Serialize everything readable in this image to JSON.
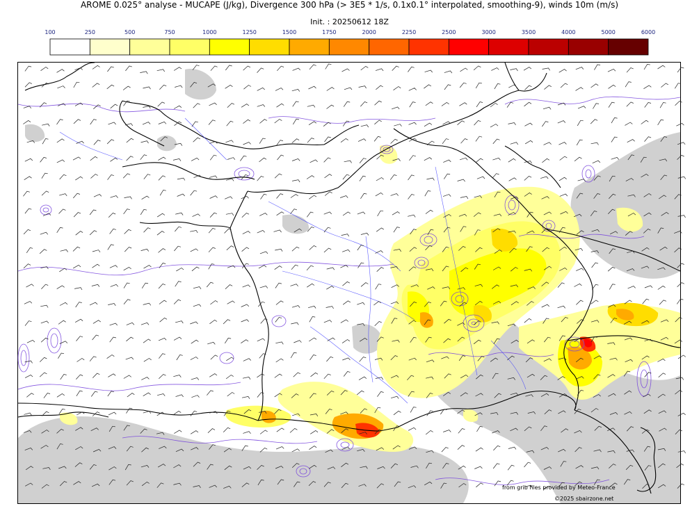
{
  "header": {
    "title": "AROME 0.025° analyse - MUCAPE (J/kg), Divergence 300 hPa (> 3E5 * 1/s, 0.1x0.1° interpolated, smoothing-9), winds 10m (m/s)",
    "init": "Init. : 20250612 18Z"
  },
  "colorbar": {
    "labels": [
      "100",
      "250",
      "500",
      "750",
      "1000",
      "1250",
      "1500",
      "1750",
      "2000",
      "2250",
      "2500",
      "3000",
      "3500",
      "4000",
      "5000",
      "6000"
    ],
    "colors": [
      "#ffffff",
      "#ffffcc",
      "#ffff99",
      "#ffff66",
      "#ffff00",
      "#ffdd00",
      "#ffaa00",
      "#ff8800",
      "#ff6600",
      "#ff3300",
      "#ff0000",
      "#dd0000",
      "#bb0000",
      "#990000",
      "#660000"
    ]
  },
  "map": {
    "colors": {
      "coast": "#000000",
      "border": "#3333ff",
      "divergence_contour": "#7744dd",
      "cloud_shading": "#c8c8c8",
      "wind_barb": "#222222"
    }
  },
  "footer": {
    "credit_1": "from grib files provided by Meteo-France",
    "credit_2": "©2025 sbairzone.net"
  }
}
